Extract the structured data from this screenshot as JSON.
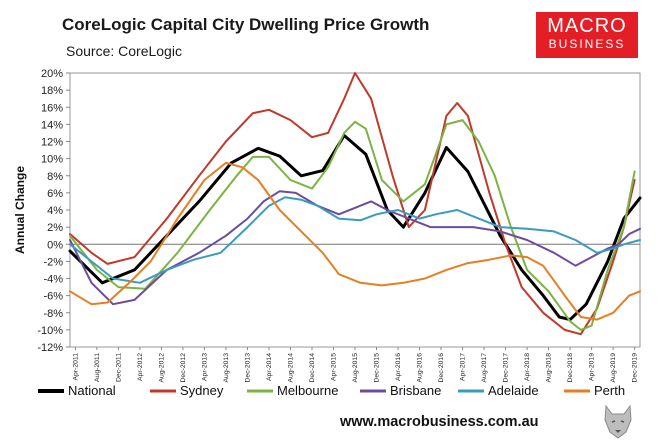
{
  "header": {
    "title": "CoreLogic Capital City Dwelling Price Growth",
    "source": "Source: CoreLogic"
  },
  "logo": {
    "line1": "MACRO",
    "line2": "BUSINESS"
  },
  "footer": {
    "url": "www.macrobusiness.com.au"
  },
  "chart_data": {
    "type": "line",
    "title": "CoreLogic Capital City Dwelling Price Growth",
    "xlabel": "",
    "ylabel": "Annual Change",
    "ylim": [
      -12,
      20
    ],
    "yticks": [
      "-12%",
      "-10%",
      "-8%",
      "-6%",
      "-4%",
      "-2%",
      "0%",
      "2%",
      "4%",
      "6%",
      "8%",
      "10%",
      "12%",
      "14%",
      "16%",
      "18%",
      "20%"
    ],
    "ytick_values": [
      -12,
      -10,
      -8,
      -6,
      -4,
      -2,
      0,
      2,
      4,
      6,
      8,
      10,
      12,
      14,
      16,
      18,
      20
    ],
    "x_range": [
      0,
      106
    ],
    "x_tick_start": 1,
    "x_tick_step": 4,
    "categories": [
      "Apr-2011",
      "Aug-2011",
      "Dec-2011",
      "Apr-2012",
      "Aug-2012",
      "Dec-2012",
      "Apr-2013",
      "Aug-2013",
      "Dec-2013",
      "Apr-2014",
      "Aug-2014",
      "Dec-2014",
      "Apr-2015",
      "Aug-2015",
      "Dec-2015",
      "Apr-2016",
      "Aug-2016",
      "Dec-2016",
      "Apr-2017",
      "Aug-2017",
      "Dec-2017",
      "Apr-2018",
      "Aug-2018",
      "Dec-2018",
      "Apr-2019",
      "Aug-2019",
      "Dec-2019"
    ],
    "legend_position": "bottom",
    "series": [
      {
        "name": "National",
        "color": "#000000",
        "width": 3,
        "points": [
          [
            0,
            -0.8
          ],
          [
            6,
            -4.5
          ],
          [
            12,
            -3.0
          ],
          [
            18,
            1.0
          ],
          [
            24,
            5.0
          ],
          [
            30,
            9.5
          ],
          [
            35,
            11.2
          ],
          [
            39,
            10.3
          ],
          [
            43,
            8.0
          ],
          [
            47,
            8.6
          ],
          [
            51,
            12.7
          ],
          [
            55,
            10.5
          ],
          [
            59,
            4.0
          ],
          [
            62,
            2.0
          ],
          [
            66,
            6.0
          ],
          [
            70,
            11.3
          ],
          [
            74,
            8.5
          ],
          [
            80,
            1.0
          ],
          [
            84,
            -3.0
          ],
          [
            88,
            -6.0
          ],
          [
            91,
            -8.5
          ],
          [
            93,
            -8.8
          ],
          [
            96,
            -7.0
          ],
          [
            100,
            -2.0
          ],
          [
            103,
            3.0
          ],
          [
            106,
            5.4
          ]
        ]
      },
      {
        "name": "Sydney",
        "color": "#c0392b",
        "width": 2,
        "points": [
          [
            0,
            1.2
          ],
          [
            4,
            -1.0
          ],
          [
            7,
            -2.3
          ],
          [
            12,
            -1.5
          ],
          [
            18,
            3.0
          ],
          [
            24,
            8.0
          ],
          [
            29,
            12.0
          ],
          [
            34,
            15.3
          ],
          [
            37,
            15.7
          ],
          [
            41,
            14.5
          ],
          [
            45,
            12.5
          ],
          [
            48,
            13.0
          ],
          [
            51,
            17.0
          ],
          [
            53,
            20.0
          ],
          [
            56,
            17.0
          ],
          [
            60,
            8.0
          ],
          [
            63,
            2.0
          ],
          [
            66,
            4.0
          ],
          [
            70,
            15.0
          ],
          [
            72,
            16.5
          ],
          [
            74,
            15.0
          ],
          [
            78,
            6.0
          ],
          [
            81,
            0.0
          ],
          [
            84,
            -5.0
          ],
          [
            88,
            -8.0
          ],
          [
            92,
            -10.0
          ],
          [
            95,
            -10.5
          ],
          [
            98,
            -7.5
          ],
          [
            101,
            -2.0
          ],
          [
            103,
            2.0
          ],
          [
            105,
            7.5
          ]
        ]
      },
      {
        "name": "Melbourne",
        "color": "#7cb342",
        "width": 2,
        "points": [
          [
            0,
            1.0
          ],
          [
            5,
            -3.0
          ],
          [
            9,
            -5.0
          ],
          [
            14,
            -5.2
          ],
          [
            20,
            -1.0
          ],
          [
            26,
            4.0
          ],
          [
            31,
            8.0
          ],
          [
            34,
            10.2
          ],
          [
            37,
            10.2
          ],
          [
            41,
            7.5
          ],
          [
            45,
            6.5
          ],
          [
            48,
            9.0
          ],
          [
            51,
            13.0
          ],
          [
            53,
            14.3
          ],
          [
            55,
            13.5
          ],
          [
            58,
            7.5
          ],
          [
            62,
            5.0
          ],
          [
            66,
            7.0
          ],
          [
            70,
            14.0
          ],
          [
            73,
            14.5
          ],
          [
            76,
            12.0
          ],
          [
            79,
            8.0
          ],
          [
            82,
            2.0
          ],
          [
            85,
            -3.0
          ],
          [
            89,
            -5.5
          ],
          [
            93,
            -9.0
          ],
          [
            95,
            -10.0
          ],
          [
            97,
            -9.5
          ],
          [
            100,
            -3.0
          ],
          [
            103,
            2.0
          ],
          [
            105,
            8.5
          ]
        ]
      },
      {
        "name": "Brisbane",
        "color": "#6d4c9e",
        "width": 2,
        "points": [
          [
            0,
            0.5
          ],
          [
            4,
            -4.5
          ],
          [
            8,
            -7.0
          ],
          [
            12,
            -6.5
          ],
          [
            18,
            -3.0
          ],
          [
            24,
            -1.0
          ],
          [
            29,
            1.0
          ],
          [
            33,
            3.0
          ],
          [
            36,
            5.0
          ],
          [
            39,
            6.2
          ],
          [
            42,
            6.0
          ],
          [
            46,
            4.5
          ],
          [
            50,
            3.5
          ],
          [
            54,
            4.5
          ],
          [
            56,
            5.0
          ],
          [
            59,
            4.0
          ],
          [
            63,
            3.0
          ],
          [
            67,
            2.0
          ],
          [
            71,
            2.0
          ],
          [
            75,
            2.0
          ],
          [
            80,
            1.5
          ],
          [
            85,
            0.5
          ],
          [
            90,
            -1.0
          ],
          [
            94,
            -2.5
          ],
          [
            97,
            -1.5
          ],
          [
            100,
            -0.5
          ],
          [
            102,
            0.0
          ],
          [
            104,
            1.2
          ],
          [
            106,
            1.8
          ]
        ]
      },
      {
        "name": "Adelaide",
        "color": "#3a9bbf",
        "width": 2,
        "points": [
          [
            0,
            0.0
          ],
          [
            4,
            -2.0
          ],
          [
            8,
            -4.0
          ],
          [
            13,
            -4.5
          ],
          [
            18,
            -3.0
          ],
          [
            23,
            -1.8
          ],
          [
            28,
            -1.0
          ],
          [
            33,
            2.0
          ],
          [
            37,
            4.5
          ],
          [
            40,
            5.5
          ],
          [
            43,
            5.2
          ],
          [
            46,
            4.5
          ],
          [
            50,
            3.0
          ],
          [
            54,
            2.8
          ],
          [
            57,
            3.5
          ],
          [
            61,
            4.0
          ],
          [
            65,
            3.0
          ],
          [
            68,
            3.5
          ],
          [
            72,
            4.0
          ],
          [
            76,
            3.0
          ],
          [
            80,
            2.0
          ],
          [
            85,
            1.8
          ],
          [
            90,
            1.5
          ],
          [
            94,
            0.5
          ],
          [
            98,
            -1.0
          ],
          [
            101,
            -0.5
          ],
          [
            103,
            0.0
          ],
          [
            106,
            0.5
          ]
        ]
      },
      {
        "name": "Perth",
        "color": "#e67e22",
        "width": 2,
        "points": [
          [
            0,
            -5.5
          ],
          [
            4,
            -7.0
          ],
          [
            7,
            -6.8
          ],
          [
            11,
            -4.5
          ],
          [
            15,
            -2.0
          ],
          [
            20,
            3.0
          ],
          [
            25,
            7.5
          ],
          [
            29,
            9.5
          ],
          [
            32,
            9.0
          ],
          [
            35,
            7.5
          ],
          [
            39,
            4.0
          ],
          [
            43,
            1.5
          ],
          [
            47,
            -1.0
          ],
          [
            50,
            -3.5
          ],
          [
            54,
            -4.5
          ],
          [
            58,
            -4.8
          ],
          [
            62,
            -4.5
          ],
          [
            66,
            -4.0
          ],
          [
            70,
            -3.0
          ],
          [
            74,
            -2.2
          ],
          [
            78,
            -1.8
          ],
          [
            82,
            -1.3
          ],
          [
            85,
            -1.5
          ],
          [
            88,
            -2.5
          ],
          [
            92,
            -6.0
          ],
          [
            95,
            -8.5
          ],
          [
            98,
            -8.8
          ],
          [
            101,
            -8.0
          ],
          [
            104,
            -6.0
          ],
          [
            106,
            -5.5
          ]
        ]
      }
    ]
  }
}
